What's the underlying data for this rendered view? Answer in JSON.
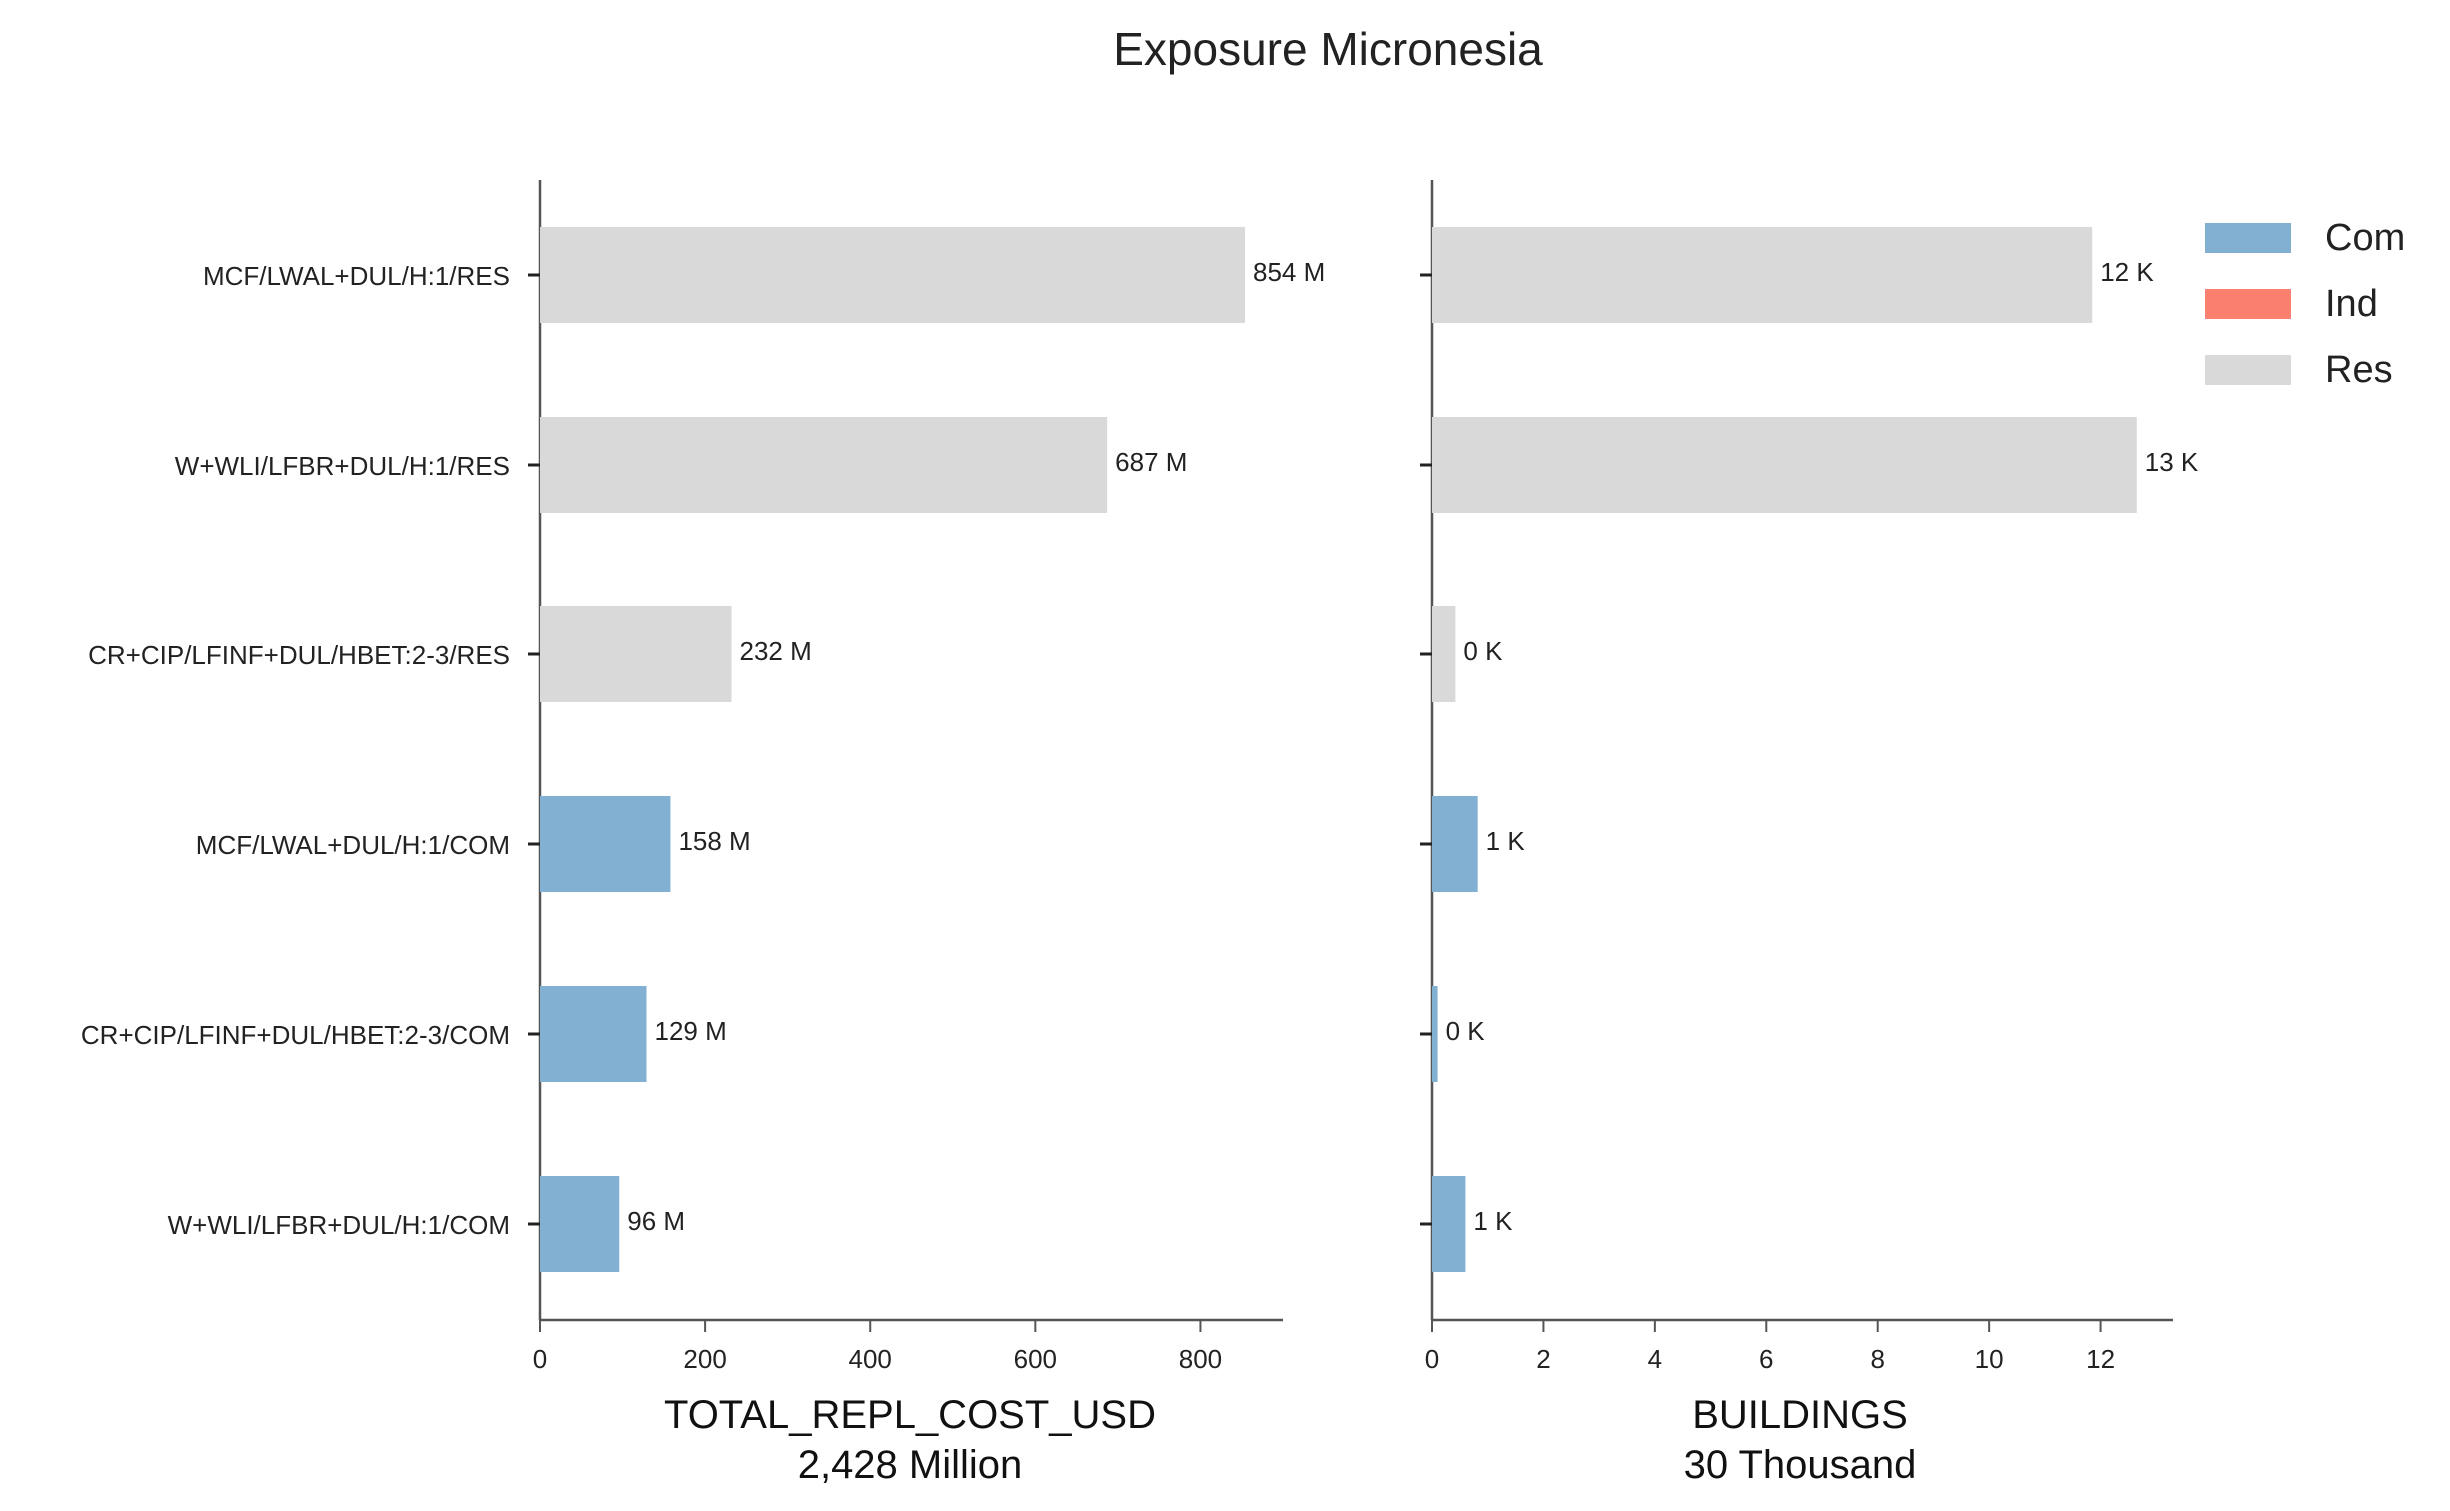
{
  "title": "Exposure Micronesia",
  "chart_data": [
    {
      "type": "bar",
      "orientation": "horizontal",
      "categories": [
        "MCF/LWAL+DUL/H:1/RES",
        "W+WLI/LFBR+DUL/H:1/RES",
        "CR+CIP/LFINF+DUL/HBET:2-3/RES",
        "MCF/LWAL+DUL/H:1/COM",
        "CR+CIP/LFINF+DUL/HBET:2-3/COM",
        "W+WLI/LFBR+DUL/H:1/COM"
      ],
      "values": [
        854,
        687,
        232,
        158,
        129,
        96
      ],
      "groups": [
        "Res",
        "Res",
        "Res",
        "Com",
        "Com",
        "Com"
      ],
      "data_labels": [
        "854 M",
        "687 M",
        "232 M",
        "158 M",
        "129 M",
        "96 M"
      ],
      "xlabel": "TOTAL_REPL_COST_USD",
      "xlabel_sub": "2,428 Million",
      "xlim": [
        0,
        900
      ],
      "xticks": [
        0,
        200,
        400,
        600,
        800
      ],
      "grid": false
    },
    {
      "type": "bar",
      "orientation": "horizontal",
      "categories": [
        "MCF/LWAL+DUL/H:1/RES",
        "W+WLI/LFBR+DUL/H:1/RES",
        "CR+CIP/LFINF+DUL/HBET:2-3/RES",
        "MCF/LWAL+DUL/H:1/COM",
        "CR+CIP/LFINF+DUL/HBET:2-3/COM",
        "W+WLI/LFBR+DUL/H:1/COM"
      ],
      "values": [
        11.85,
        12.65,
        0.42,
        0.82,
        0.1,
        0.6
      ],
      "groups": [
        "Res",
        "Res",
        "Res",
        "Com",
        "Com",
        "Com"
      ],
      "data_labels": [
        "12 K",
        "13 K",
        "0 K",
        "1 K",
        "0 K",
        "1 K"
      ],
      "xlabel": "BUILDINGS",
      "xlabel_sub": "30 Thousand",
      "xlim": [
        0,
        13.3
      ],
      "xticks": [
        0,
        2,
        4,
        6,
        8,
        10,
        12
      ],
      "grid": false
    }
  ],
  "legend": {
    "placement": "top-right",
    "items": [
      {
        "label": "Com",
        "color": "#82b0d2"
      },
      {
        "label": "Ind",
        "color": "#fa7f6f"
      },
      {
        "label": "Res",
        "color": "#d9d9d9"
      }
    ]
  },
  "colors": {
    "Com": "#82b0d2",
    "Ind": "#fa7f6f",
    "Res": "#d9d9d9",
    "axis": "#555555"
  }
}
